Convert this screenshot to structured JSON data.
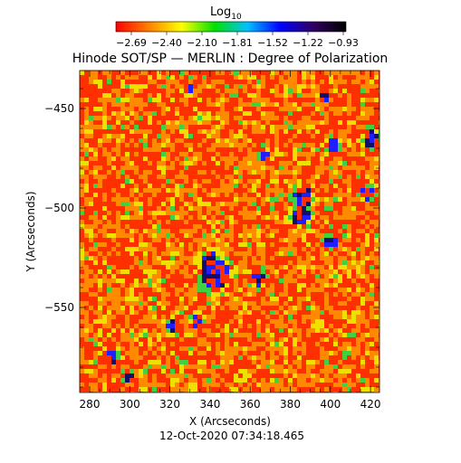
{
  "colorbar": {
    "label_base": "Log",
    "label_sub": "10",
    "ticks": [
      "−2.69",
      "−2.40",
      "−2.10",
      "−1.81",
      "−1.52",
      "−1.22",
      "−0.93"
    ],
    "colors": [
      "#ff0000",
      "#ff8000",
      "#ffff00",
      "#00e000",
      "#00c0ff",
      "#0000ff",
      "#300060",
      "#000000"
    ]
  },
  "title": "Hinode SOT/SP — MERLIN : Degree of Polarization",
  "axes": {
    "xlabel": "X (Arcseconds)",
    "ylabel": "Y (Arcseconds)",
    "xticks": [
      "280",
      "300",
      "320",
      "340",
      "360",
      "380",
      "400",
      "420"
    ],
    "yticks": [
      "−450",
      "−500",
      "−550"
    ]
  },
  "timestamp": "12-Oct-2020 07:34:18.465",
  "map_colors": {
    "low": "#ff3000",
    "mid": "#ff8a00",
    "high": "#f0e000",
    "green": "#40d040",
    "blue": "#2020ff",
    "dark": "#10106a"
  }
}
